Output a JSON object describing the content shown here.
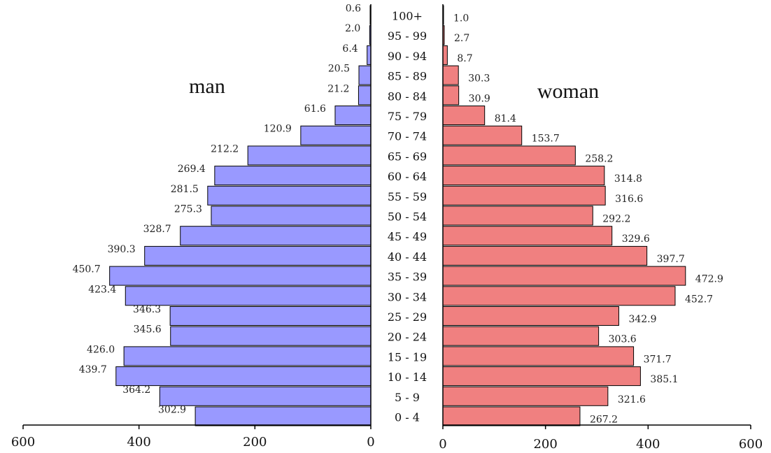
{
  "chart_data": {
    "type": "bar",
    "orientation": "horizontal",
    "layout": "population-pyramid",
    "categories": [
      "100+",
      "95 - 99",
      "90 - 94",
      "85 - 89",
      "80 - 84",
      "75 - 79",
      "70 - 74",
      "65 - 69",
      "60 - 64",
      "55 - 59",
      "50 - 54",
      "45 - 49",
      "40 - 44",
      "35 - 39",
      "30 - 34",
      "25 - 29",
      "20 - 24",
      "15 - 19",
      "10 - 14",
      "5 - 9",
      "0 - 4"
    ],
    "series": [
      {
        "name": "man",
        "side": "left",
        "color": "#9999ff",
        "values": [
          0.6,
          2.0,
          6.4,
          20.5,
          21.2,
          61.6,
          120.9,
          212.2,
          269.4,
          281.5,
          275.3,
          328.7,
          390.3,
          450.7,
          423.4,
          346.3,
          345.6,
          426.0,
          439.7,
          364.2,
          302.9
        ],
        "value_labels": [
          "0.6",
          "2.0",
          "6.4",
          "20.5",
          "21.2",
          "61.6",
          "120.9",
          "212.2",
          "269.4",
          "281.5",
          "275.3",
          "328.7",
          "390.3",
          "450.7",
          "423.4",
          "346.3",
          "345.6",
          "426.0",
          "439.7",
          "364.2",
          "302.9"
        ]
      },
      {
        "name": "woman",
        "side": "right",
        "color": "#f08080",
        "values": [
          1.0,
          2.7,
          8.7,
          30.3,
          30.9,
          81.4,
          153.7,
          258.2,
          314.8,
          316.6,
          292.2,
          329.6,
          397.7,
          472.9,
          452.7,
          342.9,
          303.6,
          371.7,
          385.1,
          321.6,
          267.2
        ],
        "value_labels": [
          "1.0",
          "2.7",
          "8.7",
          "30.3",
          "30.9",
          "81.4",
          "153.7",
          "258.2",
          "314.8",
          "316.6",
          "292.2",
          "329.6",
          "397.7",
          "472.9",
          "452.7",
          "342.9",
          "303.6",
          "371.7",
          "385.1",
          "321.6",
          "267.2"
        ]
      }
    ],
    "xlim": [
      0,
      600
    ],
    "x_ticks": [
      0,
      200,
      400,
      600
    ],
    "x_tick_labels_left": [
      "600",
      "400",
      "200",
      "0"
    ],
    "x_tick_labels_right": [
      "0",
      "200",
      "400",
      "600"
    ],
    "grid": false,
    "title": "",
    "xlabel": "",
    "ylabel": ""
  }
}
